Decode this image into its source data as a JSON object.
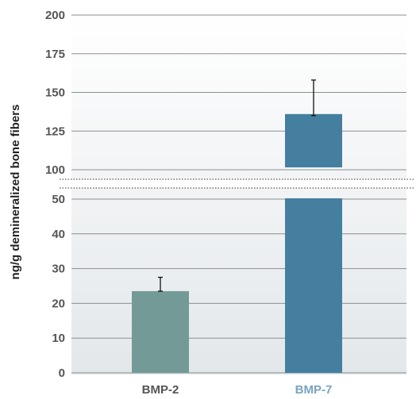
{
  "chart_data": {
    "type": "bar",
    "title": "",
    "ylabel": "ng/g demineralized bone fibers",
    "xlabel": "",
    "axis_break": {
      "lower_segment": [
        0,
        50
      ],
      "upper_segment": [
        100,
        200
      ]
    },
    "lower_ticks": [
      0,
      10,
      20,
      30,
      40,
      50
    ],
    "upper_ticks": [
      100,
      125,
      150,
      175,
      200
    ],
    "grid": true,
    "categories": [
      "BMP-2",
      "BMP-7"
    ],
    "values": [
      23.5,
      136
    ],
    "error_upper": [
      27.5,
      158
    ],
    "error_lower": [
      23.5,
      135
    ],
    "bar_colors": [
      "#739a96",
      "#447fa0"
    ],
    "category_label_colors": [
      "#555555",
      "#7ba3c0"
    ]
  }
}
